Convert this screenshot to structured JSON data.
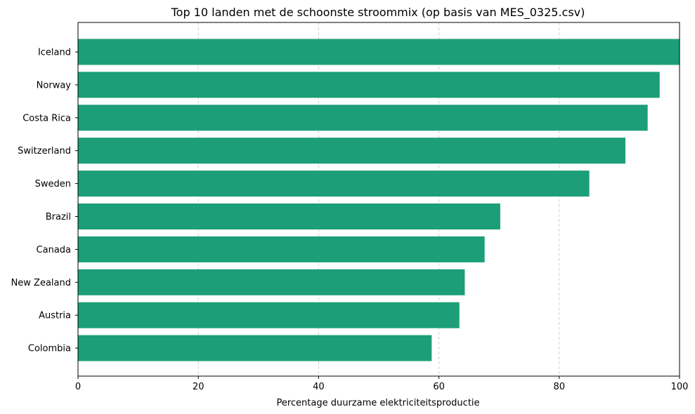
{
  "chart_data": {
    "type": "bar",
    "orientation": "horizontal",
    "title": "Top 10 landen met de schoonste stroommix (op basis van MES_0325.csv)",
    "xlabel": "Percentage duurzame elektriciteitsproductie",
    "ylabel": "",
    "categories": [
      "Iceland",
      "Norway",
      "Costa Rica",
      "Switzerland",
      "Sweden",
      "Brazil",
      "Canada",
      "New Zealand",
      "Austria",
      "Colombia"
    ],
    "values": [
      100.0,
      96.7,
      94.7,
      91.0,
      85.0,
      70.2,
      67.6,
      64.3,
      63.4,
      58.8
    ],
    "xlim": [
      0,
      100
    ],
    "xticks": [
      "0",
      "20",
      "40",
      "60",
      "80",
      "100"
    ],
    "grid": "x-dashed",
    "bar_color": "#1c9e78",
    "grid_color": "#d0d0d0"
  }
}
